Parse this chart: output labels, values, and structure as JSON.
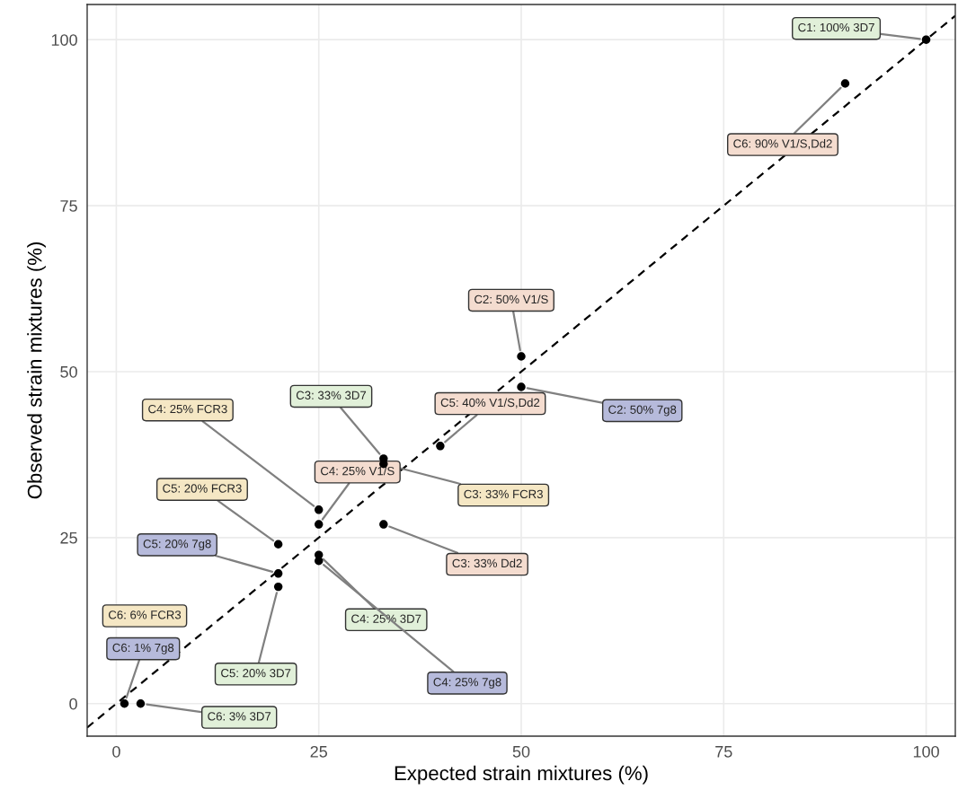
{
  "chart_data": {
    "type": "scatter",
    "xlabel": "Expected strain mixtures (%)",
    "ylabel": "Observed strain mixtures (%)",
    "xlim": [
      -3.6,
      103.6
    ],
    "ylim": [
      -4.9,
      105.3
    ],
    "xticks": [
      0,
      25,
      50,
      75,
      100
    ],
    "yticks": [
      0,
      25,
      50,
      75,
      100
    ],
    "grid": true,
    "marker": "circle",
    "series": [
      {
        "type": "line",
        "color": "#000000",
        "line_style": "dashed",
        "marker": "none",
        "x": [
          -3.6,
          103.6
        ],
        "values": [
          -3.6,
          103.6
        ]
      },
      {
        "color": "#000000",
        "x": [
          100,
          90,
          50,
          50,
          40,
          33,
          33,
          25,
          25,
          33,
          20,
          20,
          20,
          25,
          25,
          1,
          3
        ],
        "values": [
          100,
          93.4,
          52.3,
          47.7,
          38.8,
          36.9,
          36.1,
          29.2,
          27.0,
          27.0,
          24.0,
          19.6,
          17.6,
          22.4,
          21.5,
          0,
          0
        ]
      }
    ],
    "annotations": [
      {
        "text": "C1: 100% 3D7",
        "x": 100,
        "y": 100
      },
      {
        "text": "C6: 90% V1/S,Dd2",
        "x": 90,
        "y": 93.4
      },
      {
        "text": "C2: 50% V1/S",
        "x": 50,
        "y": 52.3
      },
      {
        "text": "C2: 50% 7g8",
        "x": 50,
        "y": 47.7
      },
      {
        "text": "C5: 40% V1/S,Dd2",
        "x": 40,
        "y": 38.8
      },
      {
        "text": "C3: 33% 3D7",
        "x": 33,
        "y": 36.9
      },
      {
        "text": "C3: 33% FCR3",
        "x": 33,
        "y": 36.1
      },
      {
        "text": "C4: 25% FCR3",
        "x": 25,
        "y": 29.2
      },
      {
        "text": "C4: 25% V1/S",
        "x": 25,
        "y": 27.0
      },
      {
        "text": "C3: 33% Dd2",
        "x": 33,
        "y": 27.0
      },
      {
        "text": "C5: 20% FCR3",
        "x": 20,
        "y": 24.0
      },
      {
        "text": "C5: 20% 7g8",
        "x": 20,
        "y": 19.6
      },
      {
        "text": "C5: 20% 3D7",
        "x": 20,
        "y": 17.6
      },
      {
        "text": "C4: 25% 3D7",
        "x": 25,
        "y": 22.4
      },
      {
        "text": "C4: 25% 7g8",
        "x": 25,
        "y": 21.5
      },
      "C6: 6% FCR3",
      {
        "text": "C6: 1% 7g8",
        "x": 1,
        "y": 0
      },
      {
        "text": "C6: 3% 3D7",
        "x": 3,
        "y": 0
      }
    ]
  }
}
